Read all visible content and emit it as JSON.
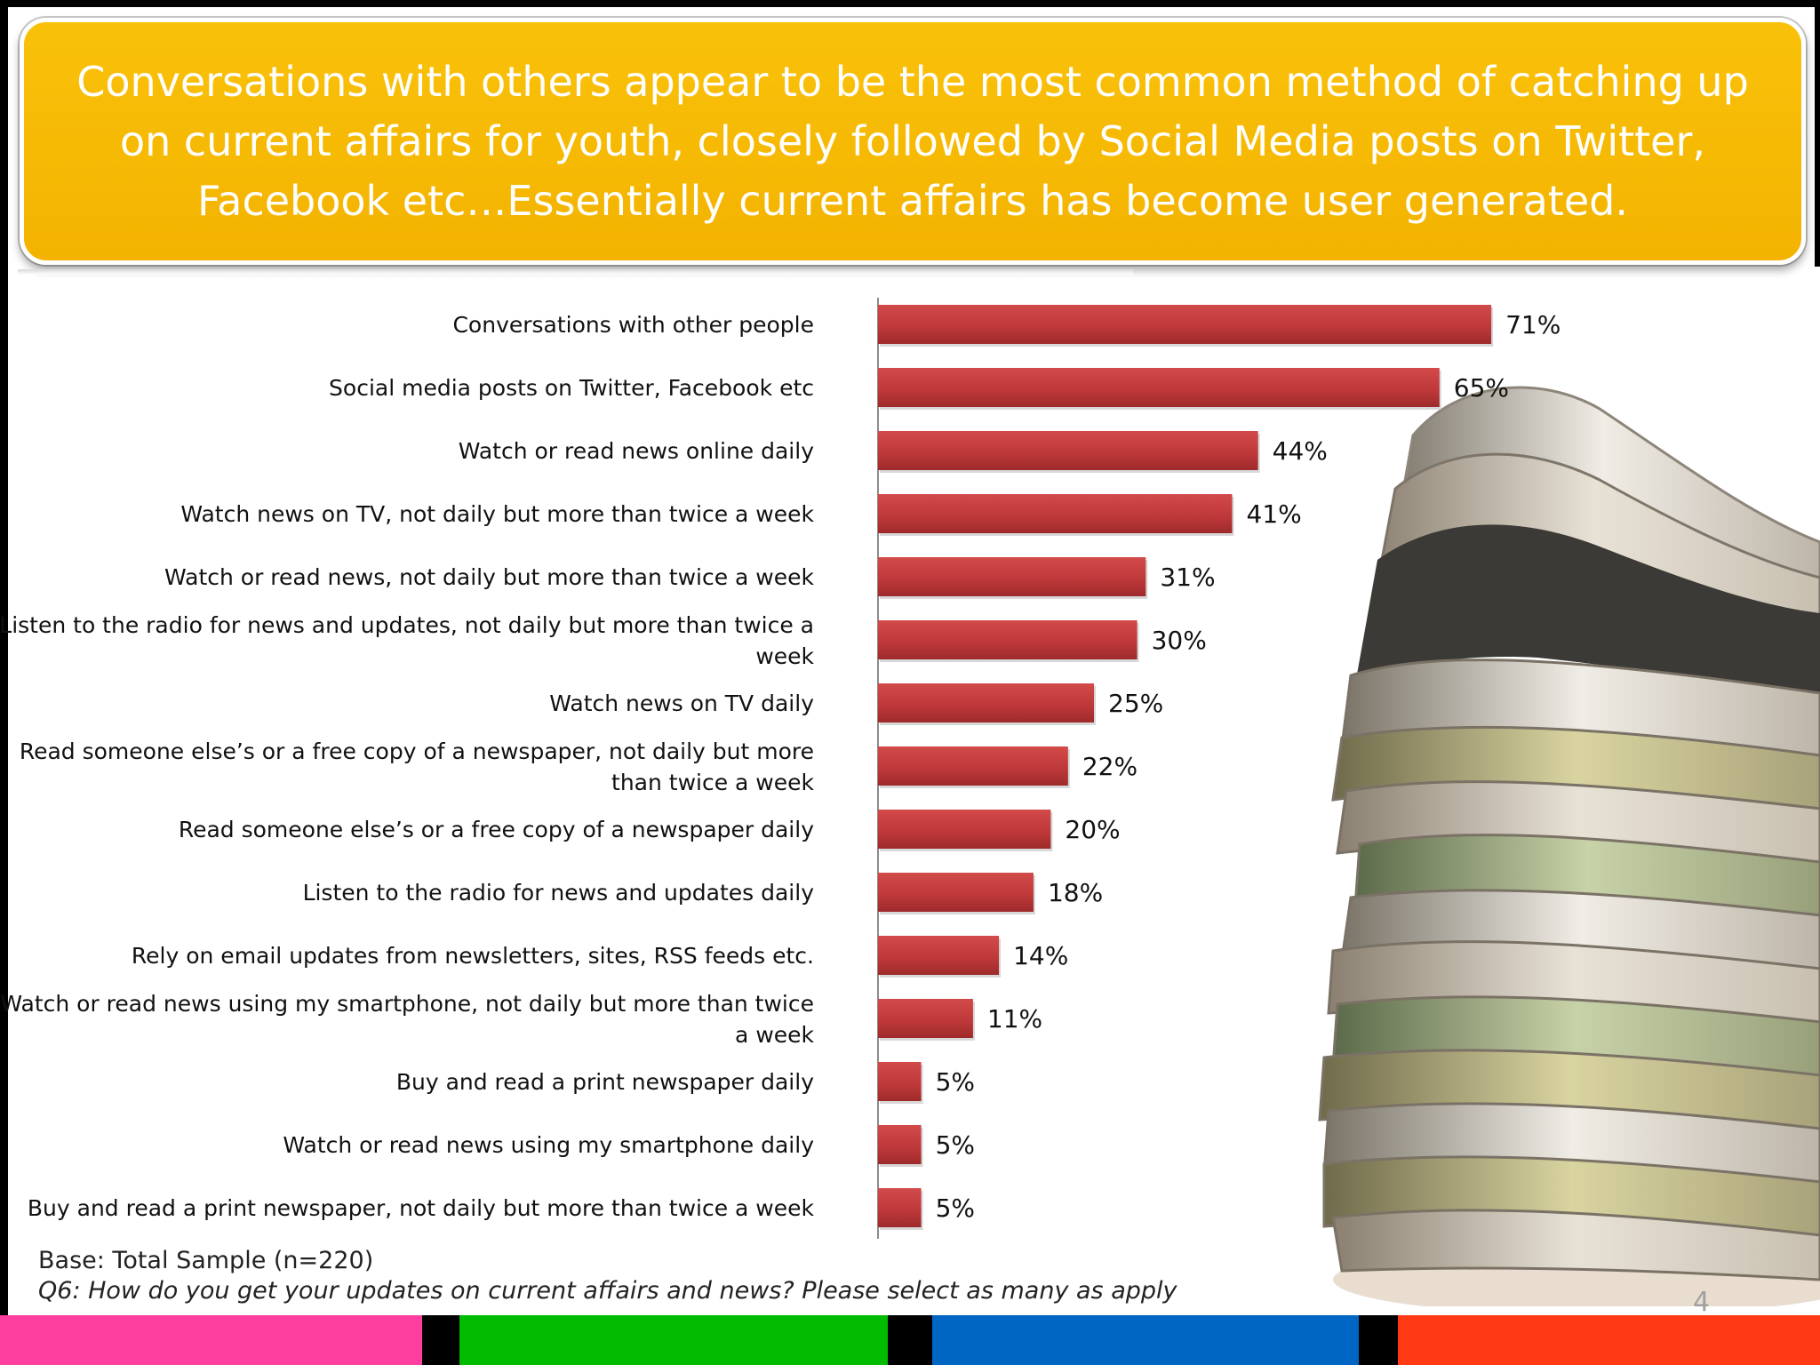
{
  "header": {
    "title": "Conversations with others appear to be the most common method of catching up on current affairs for youth, closely followed by Social Media posts on Twitter, Facebook etc…Essentially current affairs has become user generated."
  },
  "chart_data": {
    "type": "bar",
    "orientation": "horizontal",
    "title": "",
    "xlabel": "",
    "ylabel": "",
    "categories": [
      "Conversations with other people",
      "Social media posts on Twitter, Facebook etc",
      "Watch or read news online daily",
      "Watch news on TV, not daily but more than twice a week",
      "Watch or read news, not daily but more than twice a week",
      "Listen to the radio for news and updates, not daily but more than twice a week",
      "Watch news on TV daily",
      "Read someone else’s or a free copy of a newspaper, not daily but more than twice a week",
      "Read someone else’s or a free copy of a newspaper daily",
      "Listen to the radio for news and updates daily",
      "Rely on email updates from newsletters, sites, RSS feeds etc.",
      "Watch or read news using my smartphone, not daily but more than twice a week",
      "Buy and read a print newspaper daily",
      "Watch or read news using my smartphone daily",
      "Buy and read a print newspaper, not daily but more than twice a week"
    ],
    "category_lines": [
      [
        "Conversations with other people"
      ],
      [
        "Social media posts on Twitter, Facebook etc"
      ],
      [
        "Watch or read news online daily"
      ],
      [
        "Watch news on TV, not daily but more than twice a week"
      ],
      [
        "Watch or read news, not daily but more than twice a week"
      ],
      [
        "Listen to the radio for news and updates, not daily but more than twice a",
        "week"
      ],
      [
        "Watch news on TV daily"
      ],
      [
        "Read someone else’s or a free copy of a newspaper, not daily but more",
        "than twice a week"
      ],
      [
        "Read someone else’s or a free copy of a newspaper daily"
      ],
      [
        "Listen to the radio for news and updates daily"
      ],
      [
        "Rely on email updates from newsletters, sites, RSS feeds etc."
      ],
      [
        "Watch or read news using my smartphone, not daily but more than twice",
        "a week"
      ],
      [
        "Buy and read a print newspaper daily"
      ],
      [
        "Watch or read news using my smartphone daily"
      ],
      [
        "Buy and read a print newspaper, not daily but more than twice a week"
      ]
    ],
    "values": [
      71,
      65,
      44,
      41,
      31,
      30,
      25,
      22,
      20,
      18,
      14,
      11,
      5,
      5,
      5
    ],
    "value_labels": [
      "71%",
      "65%",
      "44%",
      "41%",
      "31%",
      "30%",
      "25%",
      "22%",
      "20%",
      "18%",
      "14%",
      "11%",
      "5%",
      "5%",
      "5%"
    ],
    "xlim": [
      0,
      100
    ],
    "grid": false,
    "legend": "none",
    "bar_color": "#c0393a"
  },
  "footer": {
    "base": "Base: Total Sample (n=220)",
    "question_prefix": "Q6",
    "question_text": ": How do you get your updates on current affairs and news? Please select as many as apply",
    "page_number": "4"
  },
  "stripes": [
    {
      "color": "#ff3fa0"
    },
    {
      "color": "#000000"
    },
    {
      "color": "#00bb00"
    },
    {
      "color": "#000000"
    },
    {
      "color": "#0066c4"
    },
    {
      "color": "#000000"
    },
    {
      "color": "#ff3a14"
    }
  ],
  "image": {
    "icon": "newspaper-stack-image"
  }
}
